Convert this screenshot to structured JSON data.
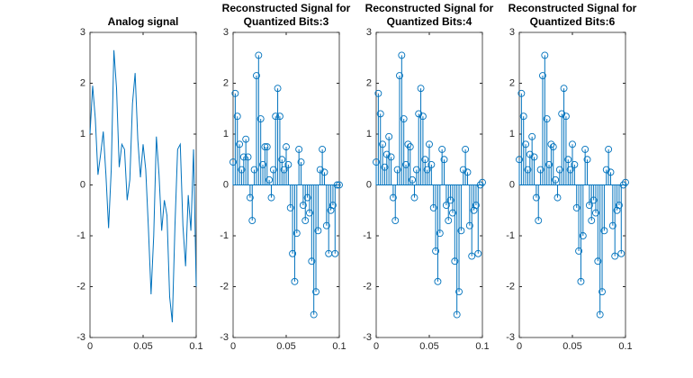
{
  "chart_data": [
    {
      "type": "line",
      "title": [
        "Analog signal"
      ],
      "color": "#0072BD",
      "x": [
        0,
        0.0025,
        0.005,
        0.0075,
        0.01,
        0.0125,
        0.015,
        0.0175,
        0.02,
        0.0225,
        0.025,
        0.0275,
        0.03,
        0.0325,
        0.035,
        0.0375,
        0.04,
        0.0425,
        0.045,
        0.0475,
        0.05,
        0.0525,
        0.055,
        0.0575,
        0.06,
        0.0625,
        0.065,
        0.0675,
        0.07,
        0.0725,
        0.075,
        0.0775,
        0.08,
        0.0825,
        0.085,
        0.0875,
        0.09,
        0.0925,
        0.095,
        0.0975,
        0.1
      ],
      "values": [
        1.0,
        1.95,
        1.3,
        0.2,
        0.6,
        1.05,
        0.2,
        -0.85,
        0.3,
        2.65,
        1.9,
        0.35,
        0.8,
        0.7,
        -0.3,
        0.1,
        1.6,
        2.2,
        0.9,
        0.15,
        0.8,
        0.3,
        -0.85,
        -2.15,
        -1.0,
        0.95,
        0.2,
        -0.9,
        -0.3,
        -0.6,
        -2.2,
        -2.7,
        -0.8,
        0.7,
        0.8,
        -0.8,
        -1.6,
        -0.2,
        -0.9,
        0.7,
        -2.0
      ],
      "xlim": [
        0,
        0.1
      ],
      "xticks": [
        0,
        0.05,
        0.1
      ],
      "ylim": [
        -3,
        3
      ],
      "yticks": [
        -3,
        -2,
        -1,
        0,
        1,
        2,
        3
      ]
    },
    {
      "type": "stem",
      "title": [
        "Reconstructed Signal for",
        "Quantized Bits:3"
      ],
      "color": "#0072BD",
      "x": [
        0,
        0.002,
        0.004,
        0.006,
        0.008,
        0.01,
        0.012,
        0.014,
        0.016,
        0.018,
        0.02,
        0.022,
        0.024,
        0.026,
        0.028,
        0.03,
        0.032,
        0.034,
        0.036,
        0.038,
        0.04,
        0.042,
        0.044,
        0.046,
        0.048,
        0.05,
        0.052,
        0.054,
        0.056,
        0.058,
        0.06,
        0.062,
        0.064,
        0.066,
        0.068,
        0.07,
        0.072,
        0.074,
        0.076,
        0.078,
        0.08,
        0.082,
        0.084,
        0.086,
        0.088,
        0.09,
        0.092,
        0.094,
        0.096,
        0.098,
        0.1
      ],
      "values": [
        0.45,
        1.8,
        1.35,
        0.8,
        0.3,
        0.55,
        0.9,
        0.55,
        -0.25,
        -0.7,
        0.3,
        2.15,
        2.55,
        1.3,
        0.4,
        0.75,
        0.75,
        0.1,
        -0.25,
        0.3,
        1.35,
        1.9,
        1.35,
        0.5,
        0.3,
        0.75,
        0.4,
        -0.45,
        -1.35,
        -1.9,
        -0.95,
        0.7,
        0.45,
        -0.4,
        -0.7,
        -0.25,
        -0.55,
        -1.5,
        -2.55,
        -2.1,
        -0.9,
        0.3,
        0.7,
        0.25,
        -0.8,
        -1.35,
        -0.5,
        -0.4,
        -1.35,
        0.0,
        0.0
      ],
      "xlim": [
        0,
        0.1
      ],
      "xticks": [
        0,
        0.05,
        0.1
      ],
      "ylim": [
        -3,
        3
      ],
      "yticks": [
        -3,
        -2,
        -1,
        0,
        1,
        2,
        3
      ]
    },
    {
      "type": "stem",
      "title": [
        "Reconstructed Signal for",
        "Quantized Bits:4"
      ],
      "color": "#0072BD",
      "x": [
        0,
        0.002,
        0.004,
        0.006,
        0.008,
        0.01,
        0.012,
        0.014,
        0.016,
        0.018,
        0.02,
        0.022,
        0.024,
        0.026,
        0.028,
        0.03,
        0.032,
        0.034,
        0.036,
        0.038,
        0.04,
        0.042,
        0.044,
        0.046,
        0.048,
        0.05,
        0.052,
        0.054,
        0.056,
        0.058,
        0.06,
        0.062,
        0.064,
        0.066,
        0.068,
        0.07,
        0.072,
        0.074,
        0.076,
        0.078,
        0.08,
        0.082,
        0.084,
        0.086,
        0.088,
        0.09,
        0.092,
        0.094,
        0.096,
        0.098,
        0.1
      ],
      "values": [
        0.45,
        1.8,
        1.4,
        0.8,
        0.35,
        0.6,
        0.95,
        0.55,
        -0.25,
        -0.7,
        0.3,
        2.15,
        2.55,
        1.3,
        0.4,
        0.8,
        0.75,
        0.1,
        -0.25,
        0.3,
        1.4,
        1.9,
        1.35,
        0.5,
        0.3,
        0.8,
        0.4,
        -0.45,
        -1.3,
        -1.9,
        -0.95,
        0.7,
        0.5,
        -0.4,
        -0.7,
        -0.3,
        -0.55,
        -1.5,
        -2.55,
        -2.1,
        -0.9,
        0.3,
        0.7,
        0.25,
        -0.8,
        -1.4,
        -0.5,
        -0.4,
        -1.35,
        0.0,
        0.05
      ],
      "xlim": [
        0,
        0.1
      ],
      "xticks": [
        0,
        0.05,
        0.1
      ],
      "ylim": [
        -3,
        3
      ],
      "yticks": [
        -3,
        -2,
        -1,
        0,
        1,
        2,
        3
      ]
    },
    {
      "type": "stem",
      "title": [
        "Reconstructed Signal for",
        "Quantized Bits:6"
      ],
      "color": "#0072BD",
      "x": [
        0,
        0.002,
        0.004,
        0.006,
        0.008,
        0.01,
        0.012,
        0.014,
        0.016,
        0.018,
        0.02,
        0.022,
        0.024,
        0.026,
        0.028,
        0.03,
        0.032,
        0.034,
        0.036,
        0.038,
        0.04,
        0.042,
        0.044,
        0.046,
        0.048,
        0.05,
        0.052,
        0.054,
        0.056,
        0.058,
        0.06,
        0.062,
        0.064,
        0.066,
        0.068,
        0.07,
        0.072,
        0.074,
        0.076,
        0.078,
        0.08,
        0.082,
        0.084,
        0.086,
        0.088,
        0.09,
        0.092,
        0.094,
        0.096,
        0.098,
        0.1
      ],
      "values": [
        0.5,
        1.8,
        1.35,
        0.8,
        0.3,
        0.6,
        0.95,
        0.55,
        -0.25,
        -0.7,
        0.3,
        2.15,
        2.55,
        1.3,
        0.4,
        0.8,
        0.75,
        0.1,
        -0.25,
        0.3,
        1.4,
        1.9,
        1.35,
        0.5,
        0.3,
        0.8,
        0.4,
        -0.45,
        -1.3,
        -1.9,
        -1.0,
        0.7,
        0.5,
        -0.4,
        -0.7,
        -0.3,
        -0.55,
        -1.5,
        -2.55,
        -2.1,
        -0.9,
        0.3,
        0.7,
        0.25,
        -0.8,
        -1.4,
        -0.5,
        -0.4,
        -1.35,
        0.0,
        0.05
      ],
      "xlim": [
        0,
        0.1
      ],
      "xticks": [
        0,
        0.05,
        0.1
      ],
      "ylim": [
        -3,
        3
      ],
      "yticks": [
        -3,
        -2,
        -1,
        0,
        1,
        2,
        3
      ]
    }
  ]
}
